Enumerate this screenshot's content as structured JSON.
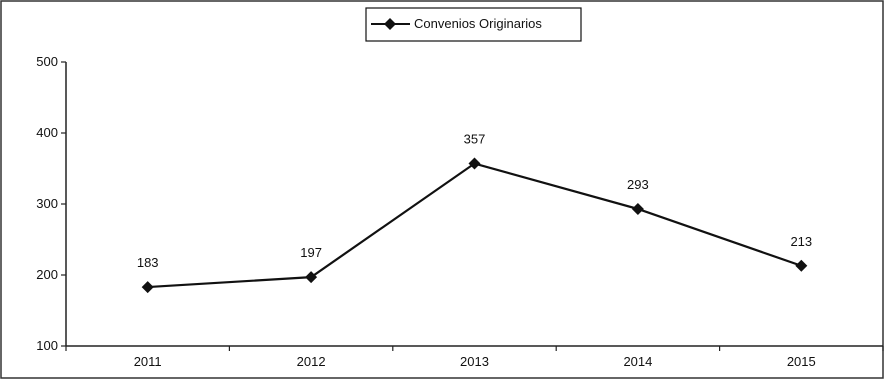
{
  "colors": {
    "line": "#111111",
    "axis": "#222222",
    "background": "#ffffff",
    "border": "#333333"
  },
  "chart_data": {
    "type": "line",
    "title": "",
    "xlabel": "",
    "ylabel": "",
    "categories": [
      "2011",
      "2012",
      "2013",
      "2014",
      "2015"
    ],
    "series": [
      {
        "name": "Convenios Originarios",
        "values": [
          183,
          197,
          357,
          293,
          213
        ],
        "marker": "diamond"
      }
    ],
    "ylim": [
      100,
      500
    ],
    "yticks": [
      100,
      200,
      300,
      400,
      500
    ],
    "grid": false,
    "legend": "top-center",
    "data_labels": true
  }
}
